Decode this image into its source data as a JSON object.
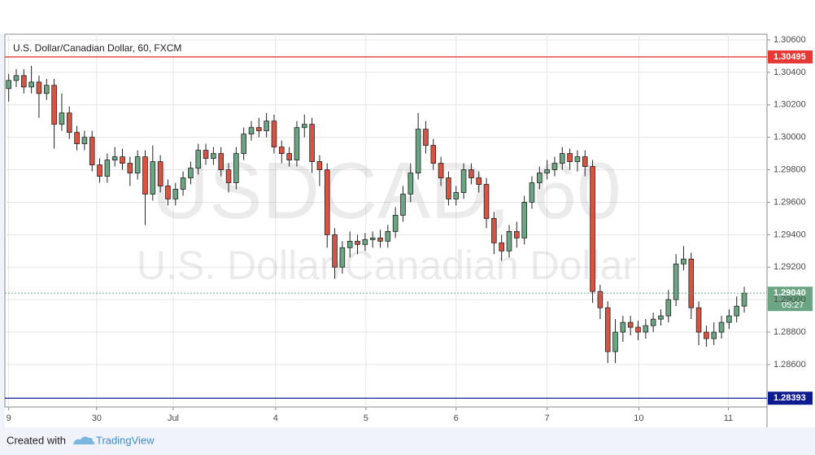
{
  "chart_data": {
    "type": "candlestick",
    "title": "U.S. Dollar/Canadian Dollar, 60, FXCM",
    "watermark": "USDCAD, 60",
    "watermark_subtitle": "U.S. Dollar/Canadian Dollar",
    "up_color": "#6ba583",
    "down_color": "#d75442",
    "grid": true,
    "xlim": [
      -0.5,
      100
    ],
    "xticks": [
      {
        "value": 0,
        "label": "9"
      },
      {
        "value": 11.6,
        "label": "30"
      },
      {
        "value": 21.7,
        "label": "Jul"
      },
      {
        "value": 35.2,
        "label": "4"
      },
      {
        "value": 47.1,
        "label": "5"
      },
      {
        "value": 59.0,
        "label": "6"
      },
      {
        "value": 71.0,
        "label": "7"
      },
      {
        "value": 83.1,
        "label": "10"
      },
      {
        "value": 94.9,
        "label": "11"
      }
    ],
    "ylim": [
      1.28339,
      1.30635
    ],
    "yticks": [
      {
        "value": 1.286,
        "label": "1.28600"
      },
      {
        "value": 1.288,
        "label": "1.28800"
      },
      {
        "value": 1.29,
        "label": "1.29000"
      },
      {
        "value": 1.292,
        "label": "1.29200"
      },
      {
        "value": 1.294,
        "label": "1.29400"
      },
      {
        "value": 1.296,
        "label": "1.29600"
      },
      {
        "value": 1.298,
        "label": "1.29800"
      },
      {
        "value": 1.3,
        "label": "1.30000"
      },
      {
        "value": 1.302,
        "label": "1.30200"
      },
      {
        "value": 1.304,
        "label": "1.30400"
      },
      {
        "value": 1.306,
        "label": "1.30600"
      }
    ],
    "open": [
      1.303,
      1.3035,
      1.3038,
      1.3031,
      1.3034,
      1.3027,
      1.3032,
      1.3008,
      1.3015,
      1.3003,
      1.2996,
      1.3,
      1.2983,
      1.2976,
      1.2986,
      1.2988,
      1.2984,
      1.2978,
      1.2988,
      1.2965,
      1.2985,
      1.297,
      1.2962,
      1.2968,
      1.2975,
      1.2981,
      1.2992,
      1.2987,
      1.299,
      1.298,
      1.2972,
      1.299,
      1.3002,
      1.3006,
      1.3004,
      1.301,
      1.2994,
      1.299,
      1.2986,
      1.3006,
      1.3008,
      1.2985,
      1.298,
      1.294,
      1.292,
      1.2932,
      1.2936,
      1.2934,
      1.2937,
      1.2938,
      1.2936,
      1.2942,
      1.2952,
      1.2965,
      1.2978,
      1.3005,
      1.2995,
      1.2984,
      1.2975,
      1.2962,
      1.2966,
      1.298,
      1.2975,
      1.2971,
      1.295,
      1.2935,
      1.293,
      1.2942,
      1.2938,
      1.296,
      1.2972,
      1.2978,
      1.298,
      1.2984,
      1.299,
      1.2985,
      1.2988,
      1.2982,
      1.2905,
      1.2895,
      1.2868,
      1.288,
      1.2886,
      1.2883,
      1.288,
      1.2884,
      1.2888,
      1.289,
      1.29,
      1.2922,
      1.2925,
      1.2895,
      1.288,
      1.2876,
      1.288,
      1.2886,
      1.289,
      1.2896
    ],
    "high": [
      1.3039,
      1.3042,
      1.3042,
      1.3044,
      1.3038,
      1.3036,
      1.3036,
      1.3027,
      1.3019,
      1.3007,
      1.3004,
      1.3004,
      1.2987,
      1.299,
      1.2994,
      1.2993,
      1.2988,
      1.2992,
      1.2992,
      1.2995,
      1.2989,
      1.2974,
      1.2972,
      1.2979,
      1.2985,
      1.2996,
      1.2996,
      1.2994,
      1.2994,
      1.2984,
      1.2994,
      1.3006,
      1.301,
      1.3012,
      1.3015,
      1.3014,
      1.2998,
      1.2994,
      1.301,
      1.3014,
      1.3012,
      1.2989,
      1.2984,
      1.2944,
      1.2936,
      1.2942,
      1.294,
      1.2941,
      1.2942,
      1.2943,
      1.2946,
      1.2957,
      1.297,
      1.2984,
      1.3015,
      1.301,
      1.2999,
      1.2988,
      1.2979,
      1.297,
      1.2984,
      1.2984,
      1.2979,
      1.2975,
      1.2954,
      1.294,
      1.2946,
      1.2948,
      1.2964,
      1.2976,
      1.2982,
      1.2986,
      1.2988,
      1.2994,
      1.2993,
      1.2992,
      1.2992,
      1.2986,
      1.2909,
      1.2899,
      1.2888,
      1.289,
      1.289,
      1.2887,
      1.2888,
      1.2892,
      1.2894,
      1.2906,
      1.2928,
      1.2933,
      1.2929,
      1.2899,
      1.2884,
      1.2886,
      1.289,
      1.2894,
      1.2902,
      1.2908
    ],
    "low": [
      1.3022,
      1.3031,
      1.3027,
      1.3027,
      1.3012,
      1.3023,
      1.2993,
      1.3004,
      1.2999,
      1.2992,
      1.2992,
      1.2979,
      1.2972,
      1.2972,
      1.2982,
      1.298,
      1.297,
      1.2974,
      1.2946,
      1.2961,
      1.2966,
      1.2958,
      1.2958,
      1.2964,
      1.2971,
      1.2977,
      1.2983,
      1.2983,
      1.2976,
      1.2966,
      1.2968,
      1.2986,
      1.2998,
      1.3,
      1.3,
      1.299,
      1.2984,
      1.2982,
      1.2982,
      1.3,
      1.2978,
      1.297,
      1.2932,
      1.2913,
      1.2916,
      1.2926,
      1.2928,
      1.293,
      1.2932,
      1.2932,
      1.2932,
      1.2938,
      1.2948,
      1.296,
      1.2974,
      1.299,
      1.298,
      1.297,
      1.2958,
      1.2958,
      1.2962,
      1.2971,
      1.2966,
      1.2944,
      1.2928,
      1.2924,
      1.2926,
      1.2932,
      1.2934,
      1.2956,
      1.2968,
      1.2974,
      1.2976,
      1.298,
      1.298,
      1.2979,
      1.2976,
      1.2898,
      1.2888,
      1.2861,
      1.2861,
      1.2874,
      1.2878,
      1.2875,
      1.2876,
      1.288,
      1.2884,
      1.2886,
      1.2896,
      1.2918,
      1.2888,
      1.2872,
      1.2871,
      1.2872,
      1.2876,
      1.2882,
      1.2886,
      1.2892
    ],
    "close": [
      1.3035,
      1.3038,
      1.3031,
      1.3034,
      1.3027,
      1.3032,
      1.3008,
      1.3015,
      1.3003,
      1.2996,
      1.3,
      1.2983,
      1.2976,
      1.2986,
      1.2988,
      1.2984,
      1.2978,
      1.2988,
      1.2965,
      1.2985,
      1.297,
      1.2962,
      1.2968,
      1.2975,
      1.2981,
      1.2992,
      1.2987,
      1.299,
      1.298,
      1.2972,
      1.299,
      1.3002,
      1.3006,
      1.3004,
      1.301,
      1.2994,
      1.299,
      1.2986,
      1.3006,
      1.3008,
      1.2985,
      1.298,
      1.294,
      1.292,
      1.2932,
      1.2936,
      1.2934,
      1.2937,
      1.2938,
      1.2936,
      1.2942,
      1.2952,
      1.2965,
      1.2978,
      1.3005,
      1.2995,
      1.2984,
      1.2975,
      1.2962,
      1.2966,
      1.298,
      1.2975,
      1.2971,
      1.295,
      1.2935,
      1.293,
      1.2942,
      1.2938,
      1.296,
      1.2972,
      1.2978,
      1.298,
      1.2984,
      1.299,
      1.2985,
      1.2988,
      1.2982,
      1.2905,
      1.2895,
      1.2868,
      1.288,
      1.2886,
      1.2883,
      1.288,
      1.2884,
      1.2888,
      1.289,
      1.29,
      1.2922,
      1.2925,
      1.2895,
      1.288,
      1.2876,
      1.288,
      1.2886,
      1.289,
      1.2896,
      1.2904
    ],
    "hlines": [
      {
        "value": 1.30495,
        "label": "1.30495",
        "color": "#e53935"
      },
      {
        "value": 1.28393,
        "label": "1.28393",
        "color": "#0e1b8f"
      }
    ],
    "last_price": {
      "value": 1.2904,
      "label": "1.29040",
      "countdown": "05:27",
      "color": "#6ba583"
    }
  },
  "footer": {
    "created_with": "Created with",
    "brand": "TradingView"
  }
}
